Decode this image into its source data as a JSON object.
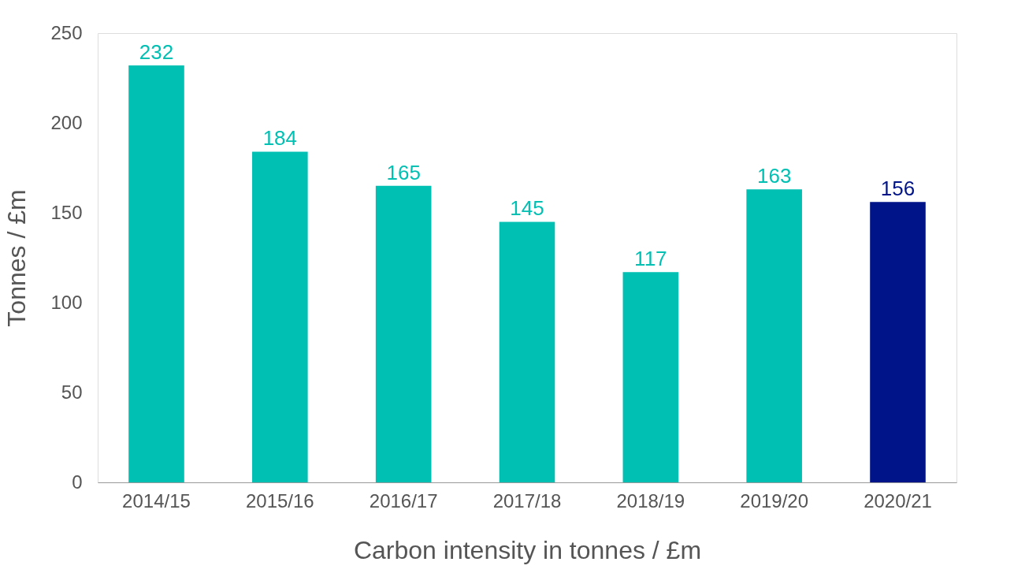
{
  "chart_data": {
    "type": "bar",
    "xlabel": "Carbon intensity in tonnes / £m",
    "ylabel": "Tonnes / £m",
    "categories": [
      "2014/15",
      "2015/16",
      "2016/17",
      "2017/18",
      "2018/19",
      "2019/20",
      "2020/21"
    ],
    "values": [
      232,
      184,
      165,
      145,
      117,
      163,
      156
    ],
    "colors": [
      "#00bfb3",
      "#00bfb3",
      "#00bfb3",
      "#00bfb3",
      "#00bfb3",
      "#00bfb3",
      "#001489"
    ],
    "ylim": [
      0,
      250
    ],
    "yticks": [
      0,
      50,
      100,
      150,
      200,
      250
    ],
    "grid": false,
    "data_labels": true
  }
}
